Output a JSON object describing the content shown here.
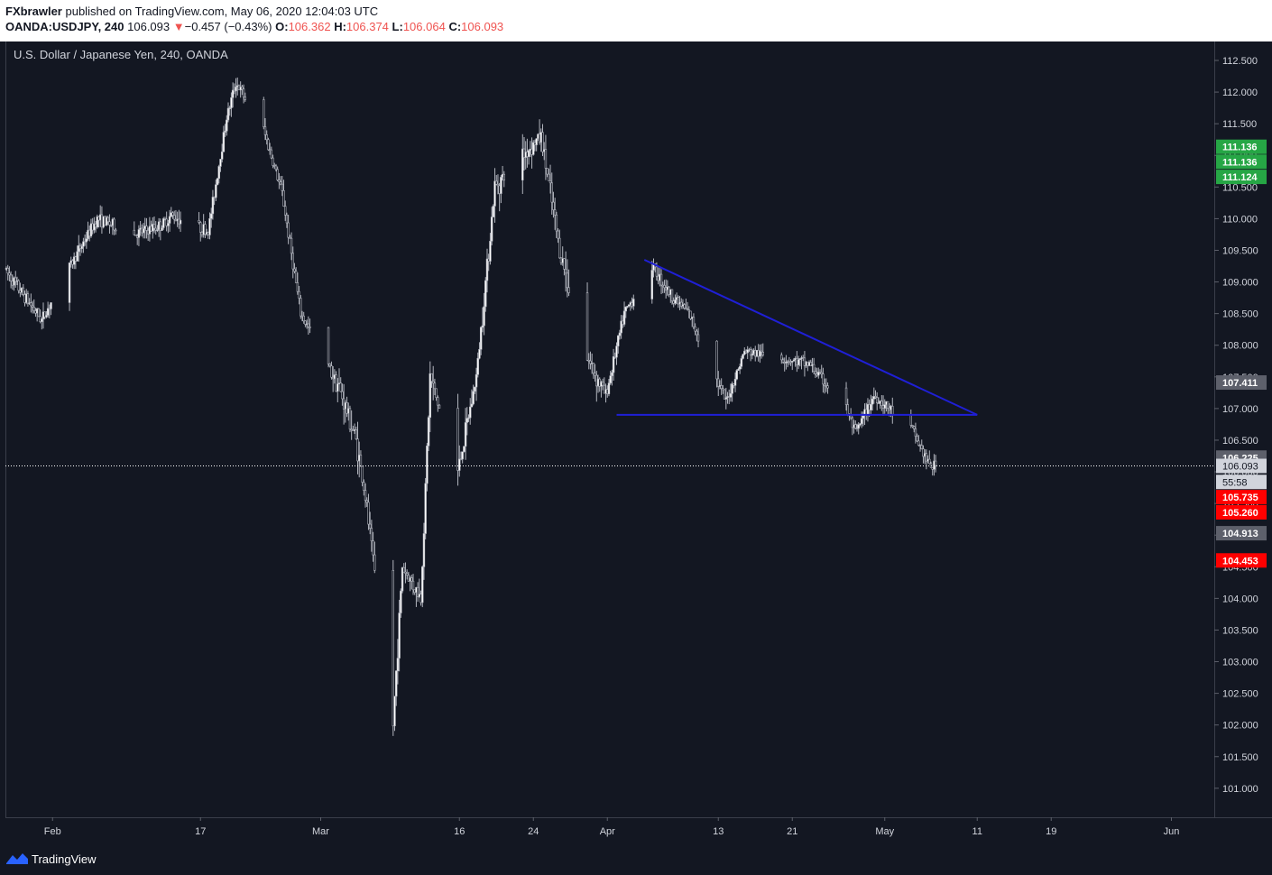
{
  "header": {
    "author": "FXbrawler",
    "published_text": "published on TradingView.com, May 06, 2020 12:04:03 UTC",
    "symbol": "OANDA:USDJPY, 240",
    "last_price": "106.093",
    "change_arrow": "▼",
    "change": "−0.457 (−0.43%)",
    "o_label": "O:",
    "o_value": "106.362",
    "h_label": "H:",
    "h_value": "106.374",
    "l_label": "L:",
    "l_value": "106.064",
    "c_label": "C:",
    "c_value": "106.093"
  },
  "chart_data": {
    "type": "candlestick",
    "title": "U.S. Dollar / Japanese Yen, 240, OANDA",
    "ylim": [
      100.5,
      112.7
    ],
    "y_ticks": [
      "101.000",
      "101.500",
      "102.000",
      "102.500",
      "103.000",
      "103.500",
      "104.000",
      "104.500",
      "105.000",
      "105.500",
      "106.000",
      "106.500",
      "107.000",
      "107.500",
      "108.000",
      "108.500",
      "109.000",
      "109.500",
      "110.000",
      "110.500",
      "111.000",
      "111.500",
      "112.000",
      "112.500"
    ],
    "x_ticks": [
      {
        "label": "Feb",
        "date": "2020-02-01"
      },
      {
        "label": "17",
        "date": "2020-02-17"
      },
      {
        "label": "Mar",
        "date": "2020-03-01"
      },
      {
        "label": "16",
        "date": "2020-03-16"
      },
      {
        "label": "24",
        "date": "2020-03-24"
      },
      {
        "label": "Apr",
        "date": "2020-04-01"
      },
      {
        "label": "13",
        "date": "2020-04-13"
      },
      {
        "label": "21",
        "date": "2020-04-21"
      },
      {
        "label": "May",
        "date": "2020-05-01"
      },
      {
        "label": "11",
        "date": "2020-05-11"
      },
      {
        "label": "19",
        "date": "2020-05-19"
      },
      {
        "label": "Jun",
        "date": "2020-06-01"
      }
    ],
    "price_path": [
      {
        "date": "2020-01-27",
        "price": 109.2
      },
      {
        "date": "2020-01-31",
        "price": 108.4
      },
      {
        "date": "2020-02-04",
        "price": 109.5
      },
      {
        "date": "2020-02-06",
        "price": 110.0
      },
      {
        "date": "2020-02-10",
        "price": 109.75
      },
      {
        "date": "2020-02-13",
        "price": 109.9
      },
      {
        "date": "2020-02-14",
        "price": 110.05
      },
      {
        "date": "2020-02-18",
        "price": 109.8
      },
      {
        "date": "2020-02-20",
        "price": 111.6
      },
      {
        "date": "2020-02-21",
        "price": 112.15
      },
      {
        "date": "2020-02-24",
        "price": 111.4
      },
      {
        "date": "2020-02-26",
        "price": 110.4
      },
      {
        "date": "2020-02-28",
        "price": 108.5
      },
      {
        "date": "2020-03-03",
        "price": 107.4
      },
      {
        "date": "2020-03-05",
        "price": 106.5
      },
      {
        "date": "2020-03-06",
        "price": 105.6
      },
      {
        "date": "2020-03-09",
        "price": 102.0
      },
      {
        "date": "2020-03-10",
        "price": 104.5
      },
      {
        "date": "2020-03-12",
        "price": 104.0
      },
      {
        "date": "2020-03-13",
        "price": 107.5
      },
      {
        "date": "2020-03-16",
        "price": 106.0
      },
      {
        "date": "2020-03-18",
        "price": 107.5
      },
      {
        "date": "2020-03-20",
        "price": 110.5
      },
      {
        "date": "2020-03-23",
        "price": 111.0
      },
      {
        "date": "2020-03-25",
        "price": 111.3
      },
      {
        "date": "2020-03-27",
        "price": 109.5
      },
      {
        "date": "2020-03-30",
        "price": 107.8
      },
      {
        "date": "2020-04-01",
        "price": 107.2
      },
      {
        "date": "2020-04-03",
        "price": 108.5
      },
      {
        "date": "2020-04-06",
        "price": 109.25
      },
      {
        "date": "2020-04-08",
        "price": 108.8
      },
      {
        "date": "2020-04-10",
        "price": 108.5
      },
      {
        "date": "2020-04-14",
        "price": 107.1
      },
      {
        "date": "2020-04-16",
        "price": 107.9
      },
      {
        "date": "2020-04-20",
        "price": 107.8
      },
      {
        "date": "2020-04-23",
        "price": 107.7
      },
      {
        "date": "2020-04-27",
        "price": 107.0
      },
      {
        "date": "2020-04-28",
        "price": 106.6
      },
      {
        "date": "2020-04-30",
        "price": 107.2
      },
      {
        "date": "2020-05-04",
        "price": 106.7
      },
      {
        "date": "2020-05-06",
        "price": 106.09
      }
    ],
    "trendlines": [
      {
        "name": "resistance",
        "color": "#1f1fd6",
        "points": [
          {
            "date": "2020-04-05",
            "price": 109.35
          },
          {
            "date": "2020-05-11",
            "price": 106.9
          }
        ]
      },
      {
        "name": "support",
        "color": "#1f1fd6",
        "points": [
          {
            "date": "2020-04-02",
            "price": 106.9
          },
          {
            "date": "2020-05-11",
            "price": 106.9
          }
        ]
      }
    ],
    "last_price_line": 106.093,
    "price_labels": [
      {
        "text": "111.136",
        "price": 111.136,
        "color": "#26a645"
      },
      {
        "text": "111.136",
        "price": 110.9,
        "color": "#26a645"
      },
      {
        "text": "111.124",
        "price": 110.66,
        "color": "#26a645"
      },
      {
        "text": "107.411",
        "price": 107.411,
        "color": "#5d606b"
      },
      {
        "text": "106.225",
        "price": 106.225,
        "color": "#5d606b"
      },
      {
        "text": "106.093",
        "price": 106.093,
        "color": "#d1d4dc"
      },
      {
        "text": "55:58",
        "price": 105.84,
        "color": "#d1d4dc"
      },
      {
        "text": "105.735",
        "price": 105.6,
        "color": "#ff0000"
      },
      {
        "text": "105.260",
        "price": 105.36,
        "color": "#ff0000"
      },
      {
        "text": "104.913",
        "price": 105.03,
        "color": "#5d606b"
      },
      {
        "text": "104.453",
        "price": 104.6,
        "color": "#ff0000"
      }
    ],
    "grid": false
  },
  "footer": {
    "brand": "TradingView"
  }
}
